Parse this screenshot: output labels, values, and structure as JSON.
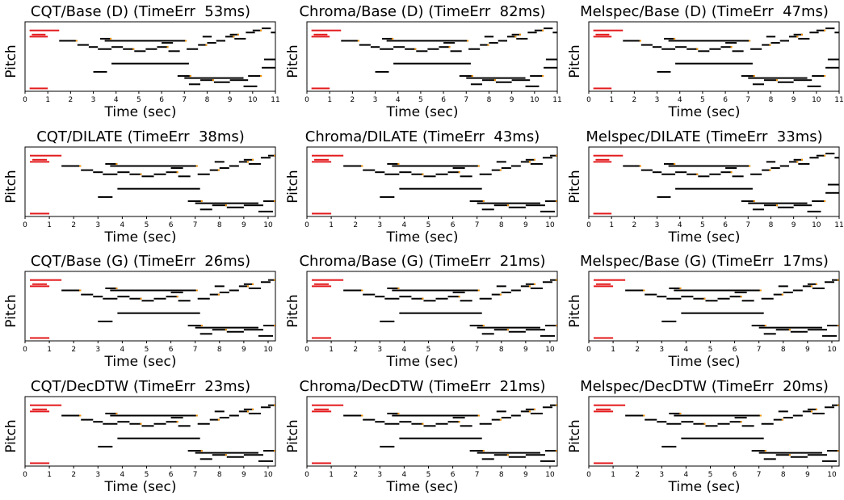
{
  "chart_data": [
    {
      "type": "piano-roll",
      "title": "CQT/Base (D) (TimeErr  53ms)",
      "ylabel": "Pitch",
      "xlabel": "Time (sec)",
      "xticks": [
        0,
        1,
        2,
        3,
        4,
        5,
        6,
        7,
        8,
        9,
        10,
        11
      ],
      "xlim": [
        0,
        11
      ]
    },
    {
      "type": "piano-roll",
      "title": "Chroma/Base (D) (TimeErr  82ms)",
      "ylabel": "Pitch",
      "xlabel": "Time (sec)",
      "xticks": [
        0,
        1,
        2,
        3,
        4,
        5,
        6,
        7,
        8,
        9,
        10,
        11
      ],
      "xlim": [
        0,
        11
      ]
    },
    {
      "type": "piano-roll",
      "title": "Melspec/Base (D) (TimeErr  47ms)",
      "ylabel": "Pitch",
      "xlabel": "Time (sec)",
      "xticks": [
        0,
        1,
        2,
        3,
        4,
        5,
        6,
        7,
        8,
        9,
        10,
        11
      ],
      "xlim": [
        0,
        11
      ]
    },
    {
      "type": "piano-roll",
      "title": "CQT/DILATE (TimeErr  38ms)",
      "ylabel": "Pitch",
      "xlabel": "Time (sec)",
      "xticks": [
        0,
        1,
        2,
        3,
        4,
        5,
        6,
        7,
        8,
        9,
        10
      ],
      "xlim": [
        0,
        10.3
      ]
    },
    {
      "type": "piano-roll",
      "title": "Chroma/DILATE (TimeErr  43ms)",
      "ylabel": "Pitch",
      "xlabel": "Time (sec)",
      "xticks": [
        0,
        1,
        2,
        3,
        4,
        5,
        6,
        7,
        8,
        9,
        10
      ],
      "xlim": [
        0,
        10.3
      ]
    },
    {
      "type": "piano-roll",
      "title": "Melspec/DILATE (TimeErr  33ms)",
      "ylabel": "Pitch",
      "xlabel": "Time (sec)",
      "xticks": [
        0,
        1,
        2,
        3,
        4,
        5,
        6,
        7,
        8,
        9,
        10,
        11
      ],
      "xlim": [
        0,
        11
      ]
    },
    {
      "type": "piano-roll",
      "title": "CQT/Base (G) (TimeErr  26ms)",
      "ylabel": "Pitch",
      "xlabel": "Time (sec)",
      "xticks": [
        0,
        1,
        2,
        3,
        4,
        5,
        6,
        7,
        8,
        9,
        10
      ],
      "xlim": [
        0,
        10.3
      ]
    },
    {
      "type": "piano-roll",
      "title": "Chroma/Base (G) (TimeErr  21ms)",
      "ylabel": "Pitch",
      "xlabel": "Time (sec)",
      "xticks": [
        0,
        1,
        2,
        3,
        4,
        5,
        6,
        7,
        8,
        9,
        10
      ],
      "xlim": [
        0,
        10.3
      ]
    },
    {
      "type": "piano-roll",
      "title": "Melspec/Base (G) (TimeErr  17ms)",
      "ylabel": "Pitch",
      "xlabel": "Time (sec)",
      "xticks": [
        0,
        1,
        2,
        3,
        4,
        5,
        6,
        7,
        8,
        9,
        10
      ],
      "xlim": [
        0,
        10.3
      ]
    },
    {
      "type": "piano-roll",
      "title": "CQT/DecDTW (TimeErr  23ms)",
      "ylabel": "Pitch",
      "xlabel": "Time (sec)",
      "xticks": [
        0,
        1,
        2,
        3,
        4,
        5,
        6,
        7,
        8,
        9,
        10
      ],
      "xlim": [
        0,
        10.3
      ]
    },
    {
      "type": "piano-roll",
      "title": "Chroma/DecDTW (TimeErr  21ms)",
      "ylabel": "Pitch",
      "xlabel": "Time (sec)",
      "xticks": [
        0,
        1,
        2,
        3,
        4,
        5,
        6,
        7,
        8,
        9,
        10
      ],
      "xlim": [
        0,
        10.3
      ]
    },
    {
      "type": "piano-roll",
      "title": "Melspec/DecDTW (TimeErr  20ms)",
      "ylabel": "Pitch",
      "xlabel": "Time (sec)",
      "xticks": [
        0,
        1,
        2,
        3,
        4,
        5,
        6,
        7,
        8,
        9,
        10
      ],
      "xlim": [
        0,
        10.3
      ]
    }
  ],
  "notes": [
    [
      0.2,
      1.5,
      3
    ],
    [
      0.3,
      0.9,
      5
    ],
    [
      0.2,
      1.0,
      6
    ],
    [
      1.5,
      2.3,
      8
    ],
    [
      2.3,
      2.8,
      10
    ],
    [
      2.8,
      3.2,
      11
    ],
    [
      3.5,
      7.1,
      8
    ],
    [
      3.2,
      3.8,
      12
    ],
    [
      3.8,
      4.3,
      11
    ],
    [
      4.3,
      4.8,
      12
    ],
    [
      4.8,
      5.3,
      13
    ],
    [
      5.3,
      5.8,
      12
    ],
    [
      5.8,
      6.3,
      11
    ],
    [
      6.3,
      6.8,
      13
    ],
    [
      7.1,
      7.6,
      12
    ],
    [
      7.6,
      8.0,
      10
    ],
    [
      8.0,
      8.4,
      9
    ],
    [
      8.4,
      8.8,
      8
    ],
    [
      8.8,
      9.2,
      6
    ],
    [
      9.2,
      9.7,
      7
    ],
    [
      9.7,
      10.1,
      4
    ],
    [
      10.0,
      10.4,
      3
    ],
    [
      10.4,
      10.8,
      2
    ],
    [
      10.8,
      11.0,
      4
    ],
    [
      3.3,
      3.8,
      7
    ],
    [
      6.0,
      6.5,
      9
    ],
    [
      7.8,
      8.2,
      6
    ],
    [
      9.0,
      9.4,
      5
    ],
    [
      3.8,
      7.2,
      19
    ],
    [
      3.0,
      3.6,
      23
    ],
    [
      6.7,
      7.3,
      25
    ],
    [
      7.0,
      9.6,
      26
    ],
    [
      7.2,
      7.7,
      29
    ],
    [
      7.7,
      8.3,
      27
    ],
    [
      8.3,
      9.0,
      28
    ],
    [
      9.0,
      9.8,
      27
    ],
    [
      9.8,
      10.4,
      25
    ],
    [
      10.4,
      11.0,
      21
    ],
    [
      9.6,
      10.2,
      30
    ],
    [
      0.2,
      1.0,
      31
    ],
    [
      10.5,
      11.0,
      17
    ]
  ]
}
